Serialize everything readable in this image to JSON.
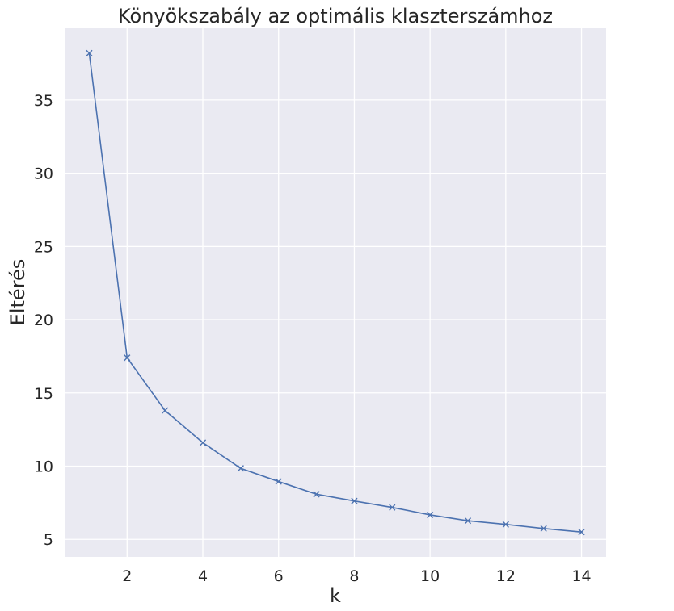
{
  "chart_data": {
    "type": "line",
    "title": "Könyökszabály az optimális klaszterszámhoz",
    "xlabel": "k",
    "ylabel": "Eltérés",
    "x": [
      1,
      2,
      3,
      4,
      5,
      6,
      7,
      8,
      9,
      10,
      11,
      12,
      13,
      14
    ],
    "series": [
      {
        "values": [
          38.2,
          17.4,
          13.8,
          11.6,
          9.85,
          8.95,
          8.08,
          7.62,
          7.18,
          6.67,
          6.27,
          6.02,
          5.74,
          5.5
        ],
        "color": "#4c72b0",
        "marker": "x"
      }
    ],
    "xticks": [
      "2",
      "4",
      "6",
      "8",
      "10",
      "12",
      "14"
    ],
    "yticks": [
      "5",
      "10",
      "15",
      "20",
      "25",
      "30",
      "35"
    ],
    "xlim": [
      0.35,
      14.65
    ],
    "ylim": [
      3.8,
      39.9
    ],
    "grid": true,
    "background": "#eaeaf2",
    "grid_color": "#ffffff"
  }
}
